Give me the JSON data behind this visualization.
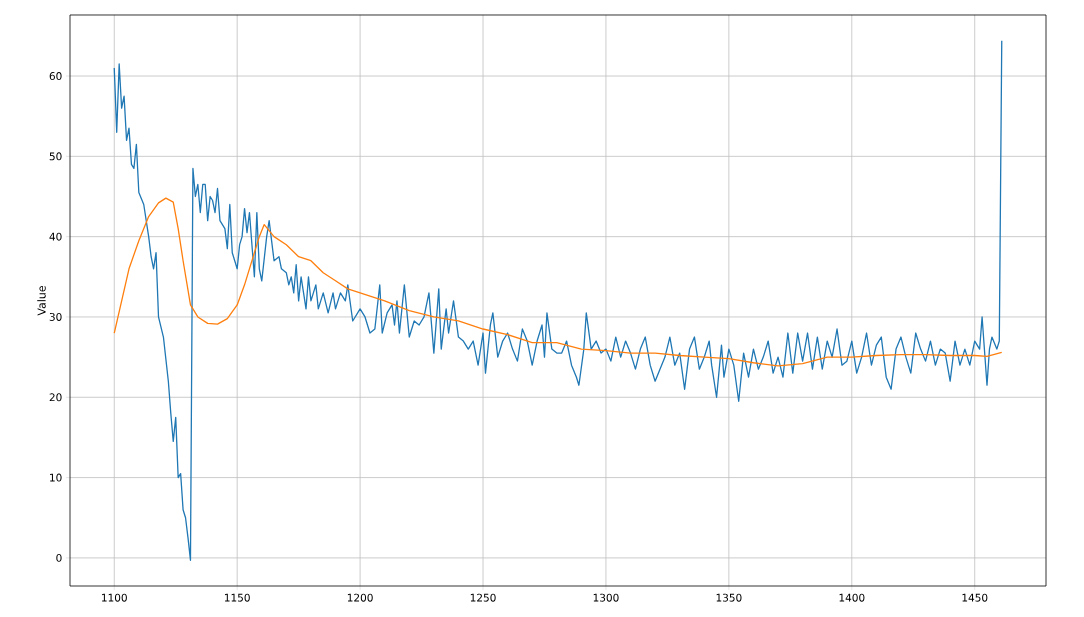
{
  "chart_data": {
    "type": "line",
    "ylabel": "Value",
    "xlim": [
      1082,
      1479
    ],
    "ylim": [
      -3.5,
      67.6
    ],
    "xticks": [
      1100,
      1150,
      1200,
      1250,
      1300,
      1350,
      1400,
      1450
    ],
    "yticks": [
      0,
      10,
      20,
      30,
      40,
      50,
      60
    ],
    "grid": true,
    "series": [
      {
        "color": "#1f77b4",
        "x": [
          1100,
          1101,
          1102,
          1103,
          1104,
          1105,
          1106,
          1107,
          1108,
          1109,
          1110,
          1112,
          1114,
          1115,
          1116,
          1117,
          1118,
          1120,
          1122,
          1123,
          1124,
          1125,
          1126,
          1127,
          1128,
          1129,
          1130,
          1131,
          1132,
          1133,
          1134,
          1135,
          1136,
          1137,
          1138,
          1139,
          1140,
          1141,
          1142,
          1143,
          1145,
          1146,
          1147,
          1148,
          1150,
          1151,
          1152,
          1153,
          1154,
          1155,
          1156,
          1157,
          1158,
          1159,
          1160,
          1162,
          1163,
          1165,
          1167,
          1168,
          1170,
          1171,
          1172,
          1173,
          1174,
          1175,
          1176,
          1177,
          1178,
          1179,
          1180,
          1182,
          1183,
          1185,
          1187,
          1189,
          1190,
          1192,
          1194,
          1195,
          1197,
          1200,
          1202,
          1204,
          1206,
          1208,
          1209,
          1211,
          1213,
          1214,
          1215,
          1216,
          1218,
          1220,
          1222,
          1224,
          1226,
          1228,
          1230,
          1232,
          1233,
          1235,
          1236,
          1238,
          1240,
          1242,
          1244,
          1246,
          1248,
          1250,
          1251,
          1253,
          1254,
          1256,
          1258,
          1260,
          1262,
          1264,
          1266,
          1268,
          1270,
          1272,
          1274,
          1275,
          1276,
          1278,
          1280,
          1282,
          1284,
          1286,
          1288,
          1289,
          1291,
          1292,
          1294,
          1296,
          1298,
          1300,
          1302,
          1304,
          1306,
          1308,
          1310,
          1312,
          1314,
          1316,
          1318,
          1320,
          1322,
          1324,
          1326,
          1328,
          1330,
          1332,
          1334,
          1336,
          1338,
          1340,
          1342,
          1343,
          1345,
          1347,
          1348,
          1350,
          1352,
          1354,
          1356,
          1358,
          1360,
          1362,
          1364,
          1366,
          1368,
          1370,
          1372,
          1374,
          1376,
          1378,
          1380,
          1382,
          1384,
          1386,
          1388,
          1390,
          1392,
          1394,
          1396,
          1398,
          1400,
          1402,
          1404,
          1406,
          1408,
          1410,
          1412,
          1414,
          1416,
          1418,
          1420,
          1422,
          1424,
          1426,
          1428,
          1430,
          1432,
          1434,
          1436,
          1438,
          1440,
          1442,
          1444,
          1446,
          1448,
          1450,
          1452,
          1453,
          1455,
          1456,
          1457,
          1459,
          1460,
          1461
        ],
        "values": [
          61,
          53,
          61.5,
          56,
          57.5,
          52,
          53.5,
          49,
          48.5,
          51.5,
          45.5,
          44,
          40,
          37.5,
          36,
          38,
          30,
          27.5,
          22,
          18,
          14.5,
          17.5,
          10,
          10.5,
          6,
          5,
          2.5,
          -0.3,
          48.5,
          45,
          46.5,
          43,
          46.5,
          46.5,
          42,
          45,
          44.5,
          43,
          46,
          42,
          41,
          38.5,
          44,
          38,
          36,
          39,
          40,
          43.5,
          40.5,
          43,
          39,
          35,
          43,
          36,
          34.5,
          40,
          42,
          37,
          37.5,
          36,
          35.5,
          34,
          35,
          33,
          36.5,
          32,
          35,
          33,
          31,
          35,
          32,
          34,
          31,
          33,
          30.5,
          33,
          31,
          33,
          32,
          34,
          29.5,
          31,
          30,
          28,
          28.5,
          34,
          28,
          30.5,
          31.5,
          29,
          32,
          28,
          34,
          27.5,
          29.5,
          29,
          30,
          33,
          25.5,
          33.5,
          26,
          31,
          28,
          32,
          27.5,
          27,
          26,
          27,
          24,
          28,
          23,
          29,
          30.5,
          25,
          27,
          28,
          26,
          24.5,
          28.5,
          27,
          24,
          27,
          29,
          25,
          30.5,
          26,
          25.5,
          25.5,
          27,
          24,
          22.5,
          21.5,
          26,
          30.5,
          26,
          27,
          25.5,
          26,
          24.5,
          27.5,
          25,
          27,
          25.5,
          23.5,
          26,
          27.5,
          24,
          22,
          23.5,
          25,
          27.5,
          24,
          25.5,
          21,
          26,
          27.5,
          23.5,
          25,
          27,
          24,
          20,
          26.5,
          22.5,
          26,
          24,
          19.5,
          25.5,
          22.5,
          26,
          23.5,
          25,
          27,
          23,
          25,
          22.5,
          28,
          23,
          28,
          24.5,
          28,
          23.5,
          27.5,
          23.5,
          27,
          25,
          28.5,
          24,
          24.5,
          27,
          23,
          25,
          28,
          24,
          26.5,
          27.5,
          22.5,
          21,
          26,
          27.5,
          25,
          23,
          28,
          26,
          24.5,
          27,
          24,
          26,
          25.5,
          22,
          27,
          24,
          26,
          24,
          27,
          26,
          30,
          21.5,
          26,
          27.5,
          26,
          27,
          64.4
        ]
      },
      {
        "color": "#ff7f0e",
        "x": [
          1100,
          1103,
          1106,
          1110,
          1114,
          1118,
          1121,
          1124,
          1126,
          1128,
          1131,
          1134,
          1138,
          1142,
          1146,
          1150,
          1153,
          1156,
          1159,
          1161,
          1165,
          1170,
          1175,
          1180,
          1185,
          1190,
          1195,
          1200,
          1210,
          1220,
          1230,
          1240,
          1250,
          1260,
          1270,
          1280,
          1290,
          1300,
          1310,
          1320,
          1330,
          1340,
          1350,
          1360,
          1370,
          1380,
          1390,
          1400,
          1410,
          1420,
          1430,
          1440,
          1450,
          1455,
          1461
        ],
        "values": [
          28,
          32,
          36,
          39.5,
          42.5,
          44.2,
          44.8,
          44.3,
          41,
          37,
          31.5,
          30,
          29.2,
          29.1,
          29.8,
          31.5,
          34,
          37,
          40,
          41.5,
          40,
          39,
          37.5,
          37,
          35.5,
          34.5,
          33.5,
          33,
          32,
          30.8,
          30,
          29.5,
          28.5,
          27.8,
          26.8,
          26.8,
          26,
          25.8,
          25.5,
          25.5,
          25.2,
          25,
          24.8,
          24.3,
          23.9,
          24.2,
          25,
          25,
          25.2,
          25.3,
          25.3,
          25.2,
          25.2,
          25.1,
          25.6
        ]
      }
    ]
  }
}
